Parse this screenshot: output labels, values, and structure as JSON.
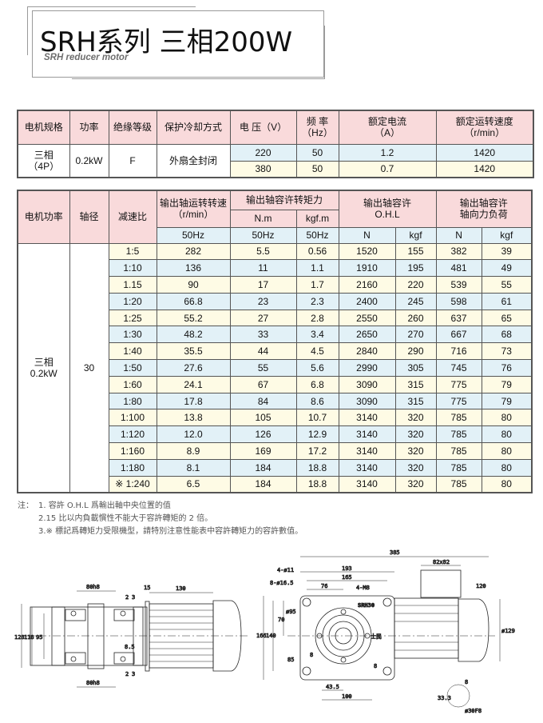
{
  "header": {
    "title": "SRH系列 三相200W",
    "subtitle": "SRH reducer motor"
  },
  "motor_table": {
    "headers": [
      "电机规格",
      "功率",
      "绝缘等级",
      "保护冷却方式",
      "电 压（V）",
      "频 率\n（Hz）",
      "额定电流\n（A）",
      "额定运转速度\n（r/min）"
    ],
    "spec": "三相\n（4P）",
    "power": "0.2kW",
    "insulation": "F",
    "cooling": "外扇全封闭",
    "rows": [
      {
        "voltage": "220",
        "freq": "50",
        "current": "1.2",
        "speed": "1420"
      },
      {
        "voltage": "380",
        "freq": "50",
        "current": "0.7",
        "speed": "1420"
      }
    ]
  },
  "gear_table": {
    "headers": {
      "motor_power": "电机功率",
      "shaft": "轴径",
      "ratio": "减速比",
      "speed": "输出轴运转转速（r/min）",
      "torque": "输出轴容许转矩力",
      "torque_nm": "N.m",
      "torque_kgfm": "kgf.m",
      "ohl": "输出轴容许\nO.H.L",
      "axial": "输出轴容许\n轴向力负荷",
      "sub": [
        "50Hz",
        "50Hz",
        "50Hz",
        "N",
        "kgf",
        "N",
        "kgf"
      ]
    },
    "motor_power": "三相\n0.2kW",
    "shaft": "30",
    "rows": [
      [
        "1:5",
        "282",
        "5.5",
        "0.56",
        "1520",
        "155",
        "382",
        "39"
      ],
      [
        "1:10",
        "136",
        "11",
        "1.1",
        "1910",
        "195",
        "481",
        "49"
      ],
      [
        "1.15",
        "90",
        "17",
        "1.7",
        "2160",
        "220",
        "539",
        "55"
      ],
      [
        "1:20",
        "66.8",
        "23",
        "2.3",
        "2400",
        "245",
        "598",
        "61"
      ],
      [
        "1:25",
        "55.2",
        "27",
        "2.8",
        "2550",
        "260",
        "637",
        "65"
      ],
      [
        "1:30",
        "48.2",
        "33",
        "3.4",
        "2650",
        "270",
        "667",
        "68"
      ],
      [
        "1:40",
        "35.5",
        "44",
        "4.5",
        "2840",
        "290",
        "716",
        "73"
      ],
      [
        "1:50",
        "27.6",
        "55",
        "5.6",
        "2990",
        "305",
        "745",
        "76"
      ],
      [
        "1:60",
        "24.1",
        "67",
        "6.8",
        "3090",
        "315",
        "775",
        "79"
      ],
      [
        "1:80",
        "17.8",
        "84",
        "8.6",
        "3090",
        "315",
        "775",
        "79"
      ],
      [
        "1:100",
        "13.8",
        "105",
        "10.7",
        "3140",
        "320",
        "785",
        "80"
      ],
      [
        "1:120",
        "12.0",
        "126",
        "12.9",
        "3140",
        "320",
        "785",
        "80"
      ],
      [
        "1:160",
        "8.9",
        "169",
        "17.2",
        "3140",
        "320",
        "785",
        "80"
      ],
      [
        "1:180",
        "8.1",
        "184",
        "18.8",
        "3140",
        "320",
        "785",
        "80"
      ],
      [
        "※ 1:240",
        "6.5",
        "184",
        "18.8",
        "3140",
        "320",
        "785",
        "80"
      ]
    ]
  },
  "notes": {
    "label": "注：",
    "items": [
      "1. 容許 O.H.L 爲輸出軸中央位置的值",
      "2.15 比以内負載慣性不能大于容許轉矩的 2 倍。",
      "3.※ 標記爲轉矩力受限機型，請特別注意性能表中容許轉矩力的容許數值。"
    ]
  },
  "drawing_left": {
    "dims": [
      "80h8",
      "130",
      "15",
      "2",
      "3",
      "128",
      "118",
      "95",
      "8.5",
      "2",
      "3",
      "80h8"
    ]
  },
  "drawing_right": {
    "dims": [
      "385",
      "193",
      "165",
      "76",
      "4-ø11",
      "8-ø16.5",
      "4-M8",
      "ø95",
      "70",
      "166",
      "140",
      "85",
      "8",
      "43.5",
      "100",
      "82x82",
      "120",
      "ø129",
      "8",
      "33.3",
      "ø30F8",
      "8"
    ],
    "nameplate": "SRH30",
    "badge": "士民"
  },
  "colors": {
    "header_pink": "#f9dadb",
    "row_blue": "#e2f1f7",
    "row_yellow": "#fefbe5"
  }
}
